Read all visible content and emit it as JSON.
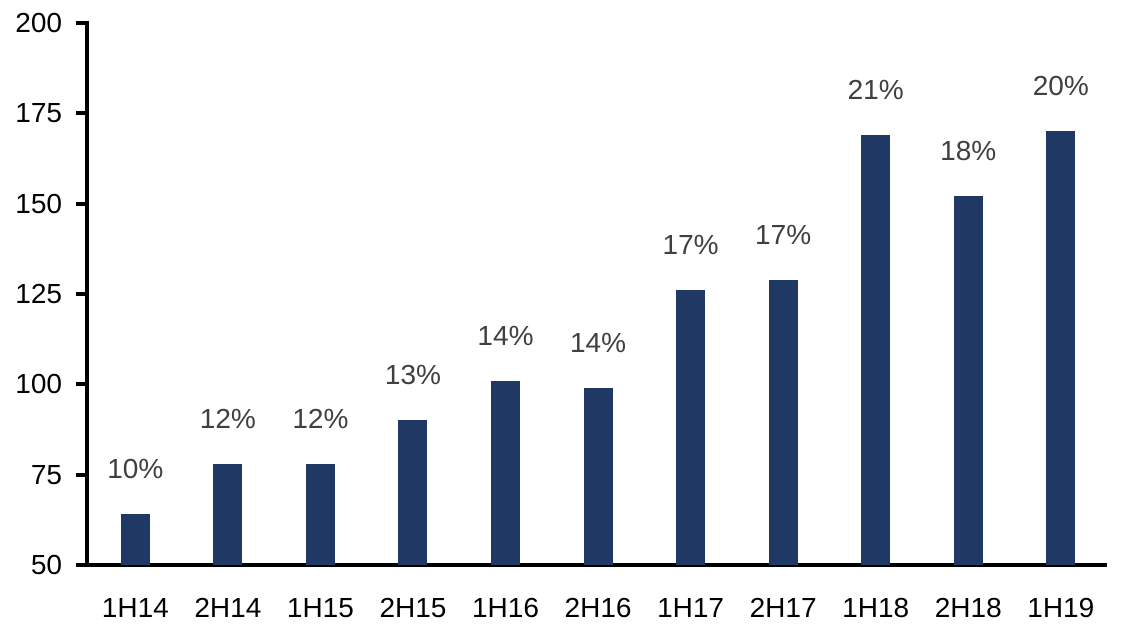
{
  "chart_data": {
    "type": "bar",
    "title": "",
    "categories": [
      "1H14",
      "2H14",
      "1H15",
      "2H15",
      "1H16",
      "2H16",
      "1H17",
      "2H17",
      "1H18",
      "2H18",
      "1H19"
    ],
    "values": [
      64,
      78,
      78,
      90,
      101,
      99,
      126,
      129,
      169,
      152,
      170
    ],
    "data_labels": [
      "10%",
      "12%",
      "12%",
      "13%",
      "14%",
      "14%",
      "17%",
      "17%",
      "21%",
      "18%",
      "20%"
    ],
    "ylim": [
      50,
      200
    ],
    "yticks": [
      50,
      75,
      100,
      125,
      150,
      175,
      200
    ],
    "xlabel": "",
    "ylabel": "",
    "grid": false,
    "legend": false,
    "bar_color": "#1F3864",
    "data_label_color": "#404040",
    "axis_color": "#000000",
    "tick_label_color": "#000000",
    "background_color": "#FFFFFF"
  }
}
